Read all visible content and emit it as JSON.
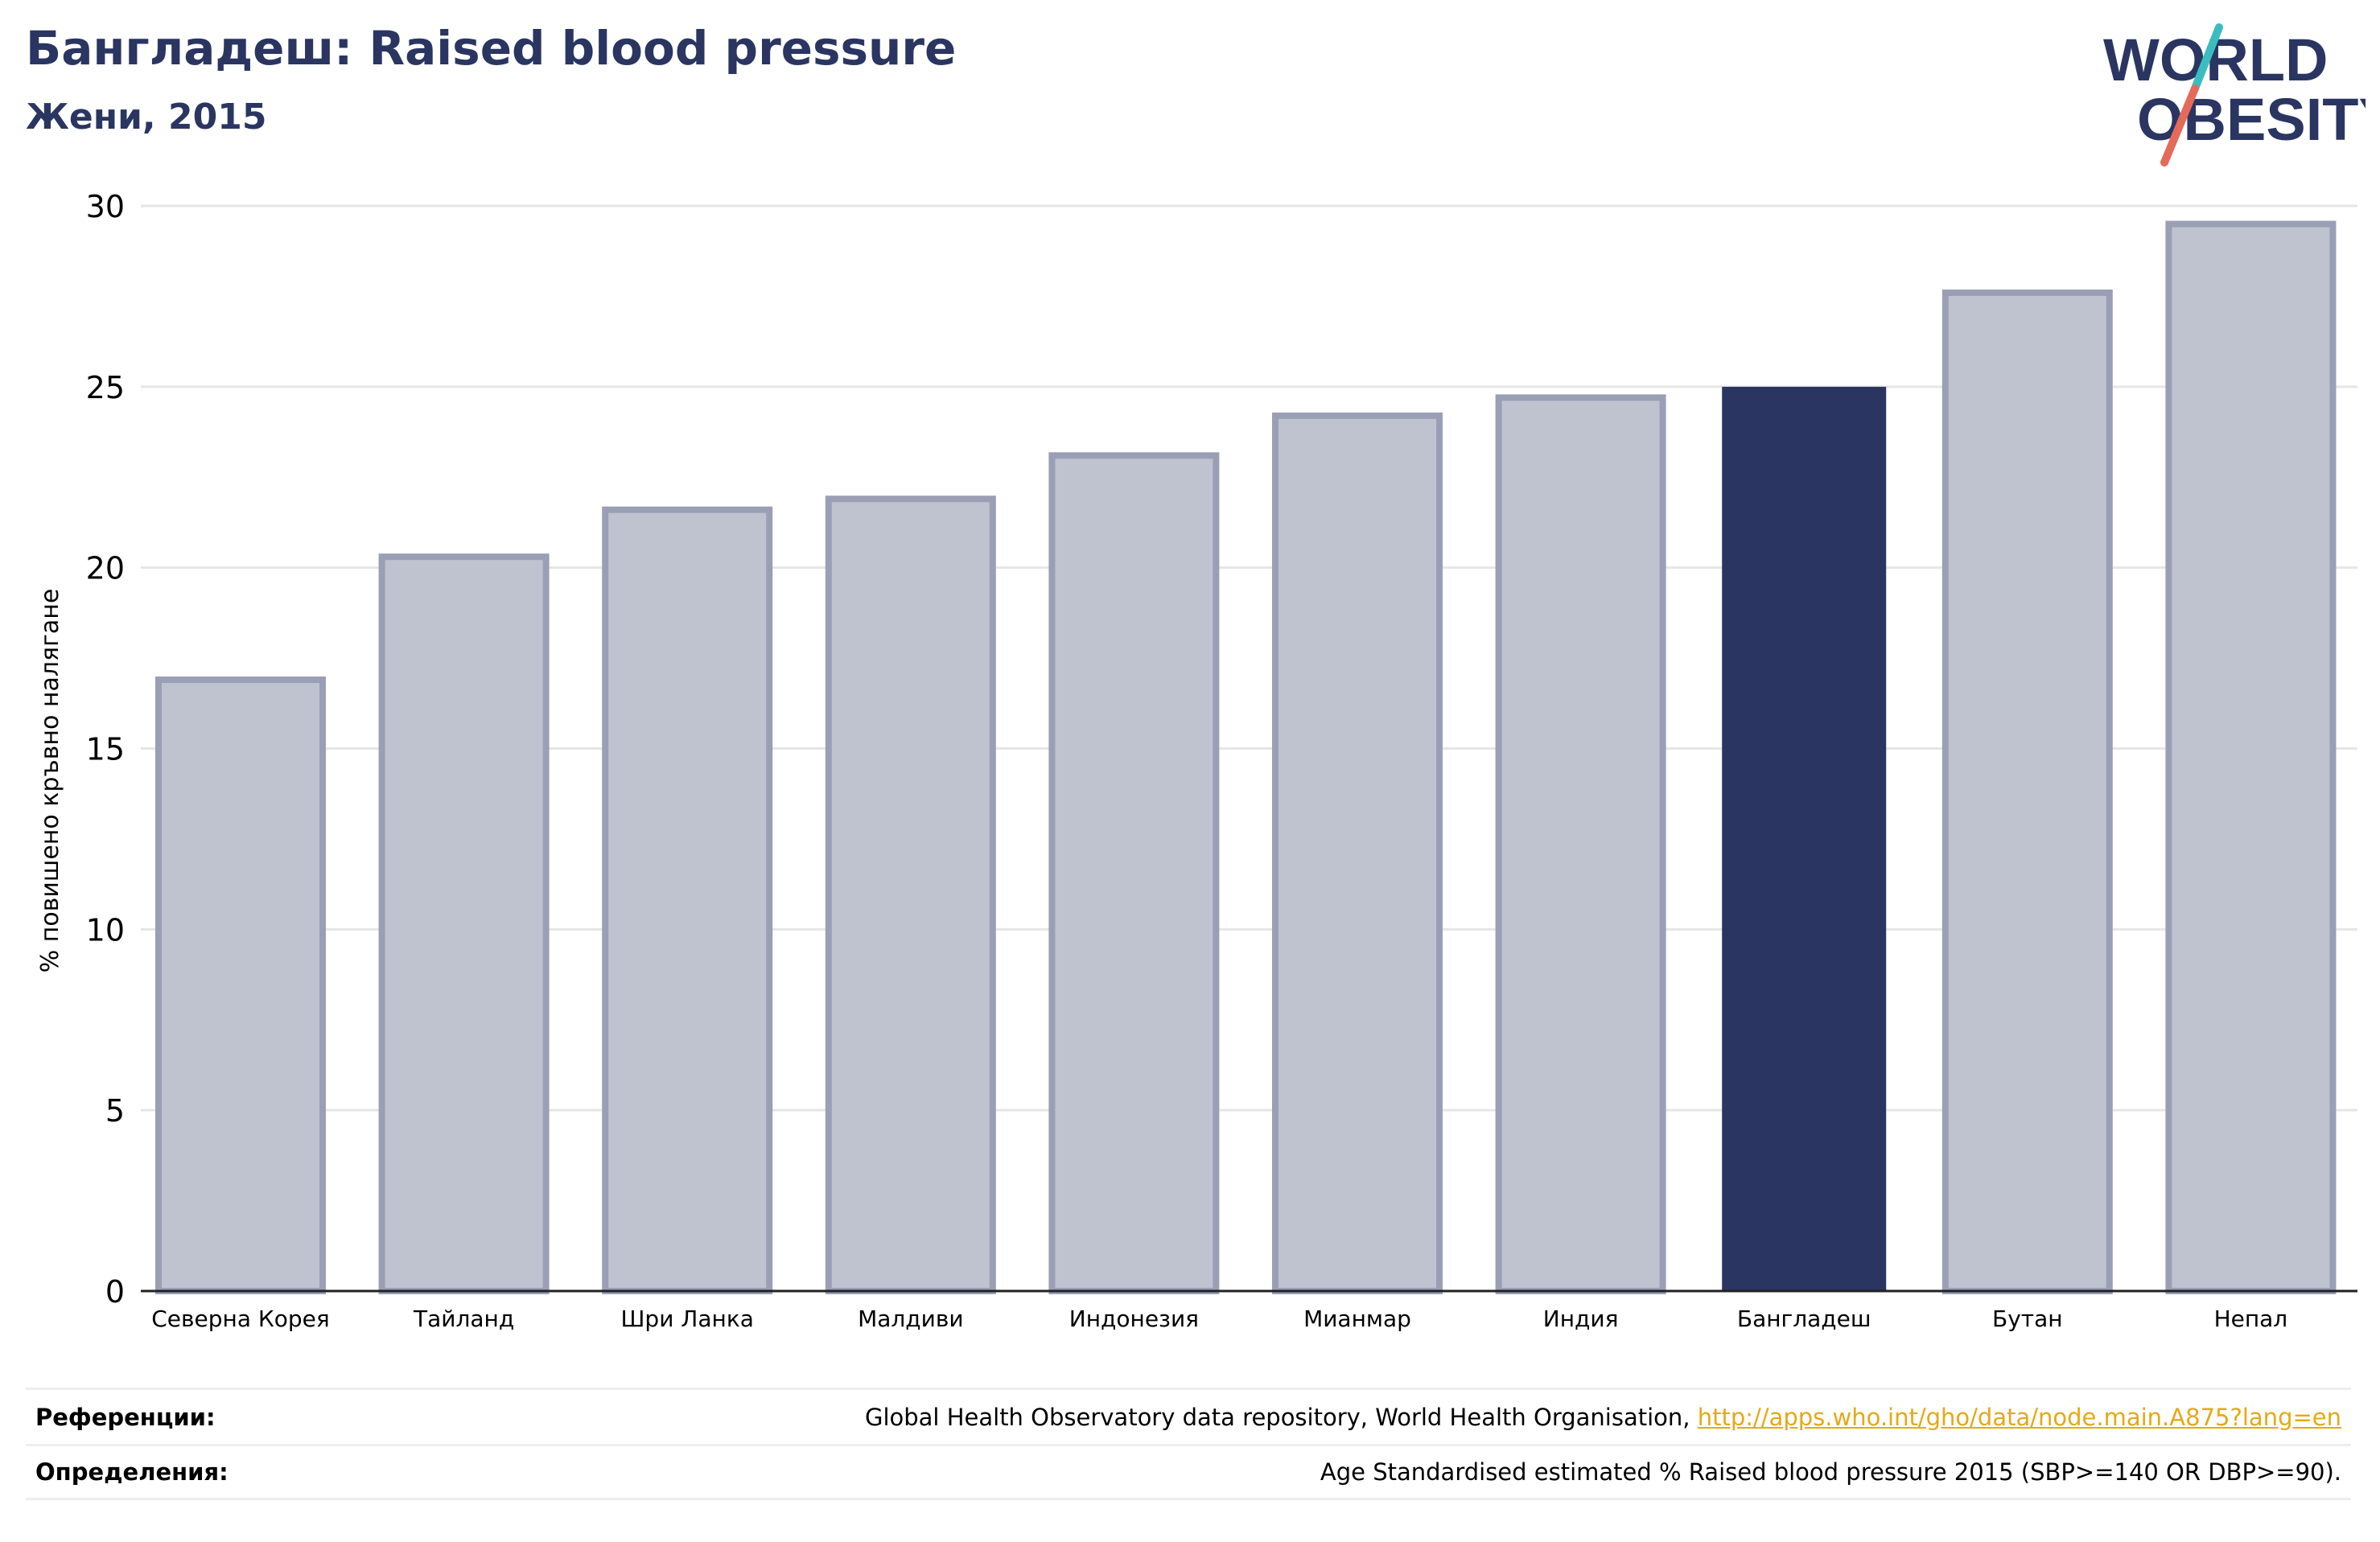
{
  "header": {
    "title": "Бангладеш: Raised blood pressure",
    "subtitle": "Жени, 2015"
  },
  "logo": {
    "line1": "WORLD",
    "line2": "OBESITY"
  },
  "colors": {
    "highlight": "#2a3561",
    "bar_fill": "#bfc2cf",
    "bar_stroke": "#9a9fb5",
    "grid": "#e6e6e6",
    "link": "#e4a916",
    "logo_teal": "#3bbdc0",
    "logo_coral": "#e46a5a"
  },
  "chart_data": {
    "type": "bar",
    "categories": [
      "Северна Корея",
      "Тайланд",
      "Шри Ланка",
      "Малдиви",
      "Индонезия",
      "Мианмар",
      "Индия",
      "Бангладеш",
      "Бутан",
      "Непал"
    ],
    "values": [
      16.9,
      20.3,
      21.6,
      21.9,
      23.1,
      24.2,
      24.7,
      25.0,
      27.6,
      29.5
    ],
    "highlight_category": "Бангладеш",
    "ylabel": "% повишено кръвно налягане",
    "ylim": [
      0,
      30
    ],
    "yticks": [
      0,
      5,
      10,
      15,
      20,
      25,
      30
    ],
    "grid": true
  },
  "footer": {
    "references_label": "Референции:",
    "references_text": "Global Health Observatory data repository, World Health Organisation, ",
    "references_link": "http://apps.who.int/gho/data/node.main.A875?lang=en",
    "definitions_label": "Определения:",
    "definitions_text": "Age Standardised estimated % Raised blood pressure 2015 (SBP>=140 OR DBP>=90)."
  }
}
